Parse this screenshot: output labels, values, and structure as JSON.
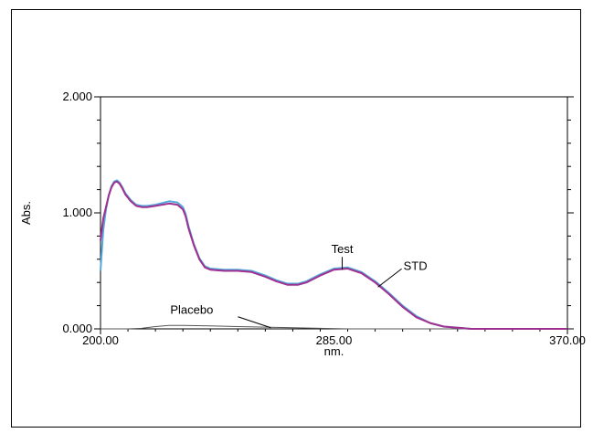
{
  "chart_data": {
    "type": "line",
    "xlabel": "nm.",
    "ylabel": "Abs.",
    "xlim": [
      200,
      370
    ],
    "ylim": [
      0,
      2
    ],
    "x_ticks": [
      200,
      285,
      370
    ],
    "x_tick_labels": [
      "200.00",
      "285.00",
      "370.00"
    ],
    "y_ticks": [
      0,
      1,
      2
    ],
    "y_tick_labels": [
      "0.000",
      "1.000",
      "2.000"
    ],
    "grid": false,
    "series": [
      {
        "name": "STD",
        "color": "#a03090",
        "x": [
          200,
          201,
          202,
          203,
          204,
          205,
          206,
          207,
          208,
          209,
          211,
          213,
          215,
          217,
          220,
          225,
          228,
          230,
          231,
          232,
          234,
          236,
          238,
          240,
          245,
          250,
          255,
          260,
          264,
          268,
          272,
          275,
          280,
          285,
          290,
          295,
          300,
          305,
          310,
          315,
          320,
          325,
          330,
          335,
          340,
          345,
          350,
          355,
          360,
          365,
          370
        ],
        "y": [
          0.76,
          0.95,
          1.05,
          1.15,
          1.22,
          1.26,
          1.27,
          1.25,
          1.21,
          1.16,
          1.1,
          1.06,
          1.05,
          1.05,
          1.06,
          1.08,
          1.07,
          1.03,
          0.97,
          0.87,
          0.72,
          0.6,
          0.53,
          0.51,
          0.5,
          0.5,
          0.49,
          0.45,
          0.41,
          0.38,
          0.38,
          0.4,
          0.46,
          0.51,
          0.52,
          0.48,
          0.4,
          0.3,
          0.19,
          0.1,
          0.05,
          0.02,
          0.01,
          0.0,
          0.0,
          0.0,
          0.0,
          0.0,
          0.0,
          0.0,
          0.0
        ]
      },
      {
        "name": "Test",
        "color": "#55aadd",
        "x": [
          200,
          201,
          202,
          203,
          204,
          205,
          206,
          207,
          208,
          209,
          211,
          213,
          215,
          217,
          220,
          225,
          228,
          230,
          231,
          232,
          234,
          236,
          238,
          240,
          245,
          250,
          255,
          260,
          264,
          268,
          272,
          275,
          280,
          285,
          290,
          295,
          300,
          305,
          310,
          315,
          320,
          325,
          330,
          335,
          340,
          345,
          350,
          355,
          360,
          365,
          370
        ],
        "y": [
          0.5,
          0.85,
          1.03,
          1.15,
          1.23,
          1.27,
          1.28,
          1.26,
          1.22,
          1.17,
          1.11,
          1.07,
          1.06,
          1.06,
          1.07,
          1.1,
          1.09,
          1.05,
          0.99,
          0.89,
          0.73,
          0.61,
          0.54,
          0.52,
          0.51,
          0.51,
          0.5,
          0.46,
          0.42,
          0.39,
          0.39,
          0.41,
          0.47,
          0.52,
          0.53,
          0.49,
          0.41,
          0.31,
          0.2,
          0.11,
          0.05,
          0.02,
          0.01,
          0.0,
          0.0,
          0.0,
          0.0,
          0.0,
          0.0,
          0.0,
          0.0
        ]
      },
      {
        "name": "Placebo",
        "color": "#555555",
        "x": [
          200,
          210,
          215,
          220,
          225,
          230,
          240,
          250,
          260,
          270,
          280,
          290,
          300,
          320,
          340,
          370
        ],
        "y": [
          0.0,
          0.0,
          0.005,
          0.02,
          0.03,
          0.03,
          0.025,
          0.02,
          0.015,
          0.01,
          0.005,
          0.0,
          0.0,
          0.0,
          0.0,
          0.0
        ]
      }
    ],
    "annotations": [
      {
        "text": "Test",
        "target_series": "Test",
        "x": 288,
        "y": 0.51
      },
      {
        "text": "STD",
        "target_series": "STD",
        "x": 301,
        "y": 0.36
      },
      {
        "text": "Placebo",
        "target_series": "Placebo",
        "x": 262,
        "y": 0.01
      }
    ]
  }
}
